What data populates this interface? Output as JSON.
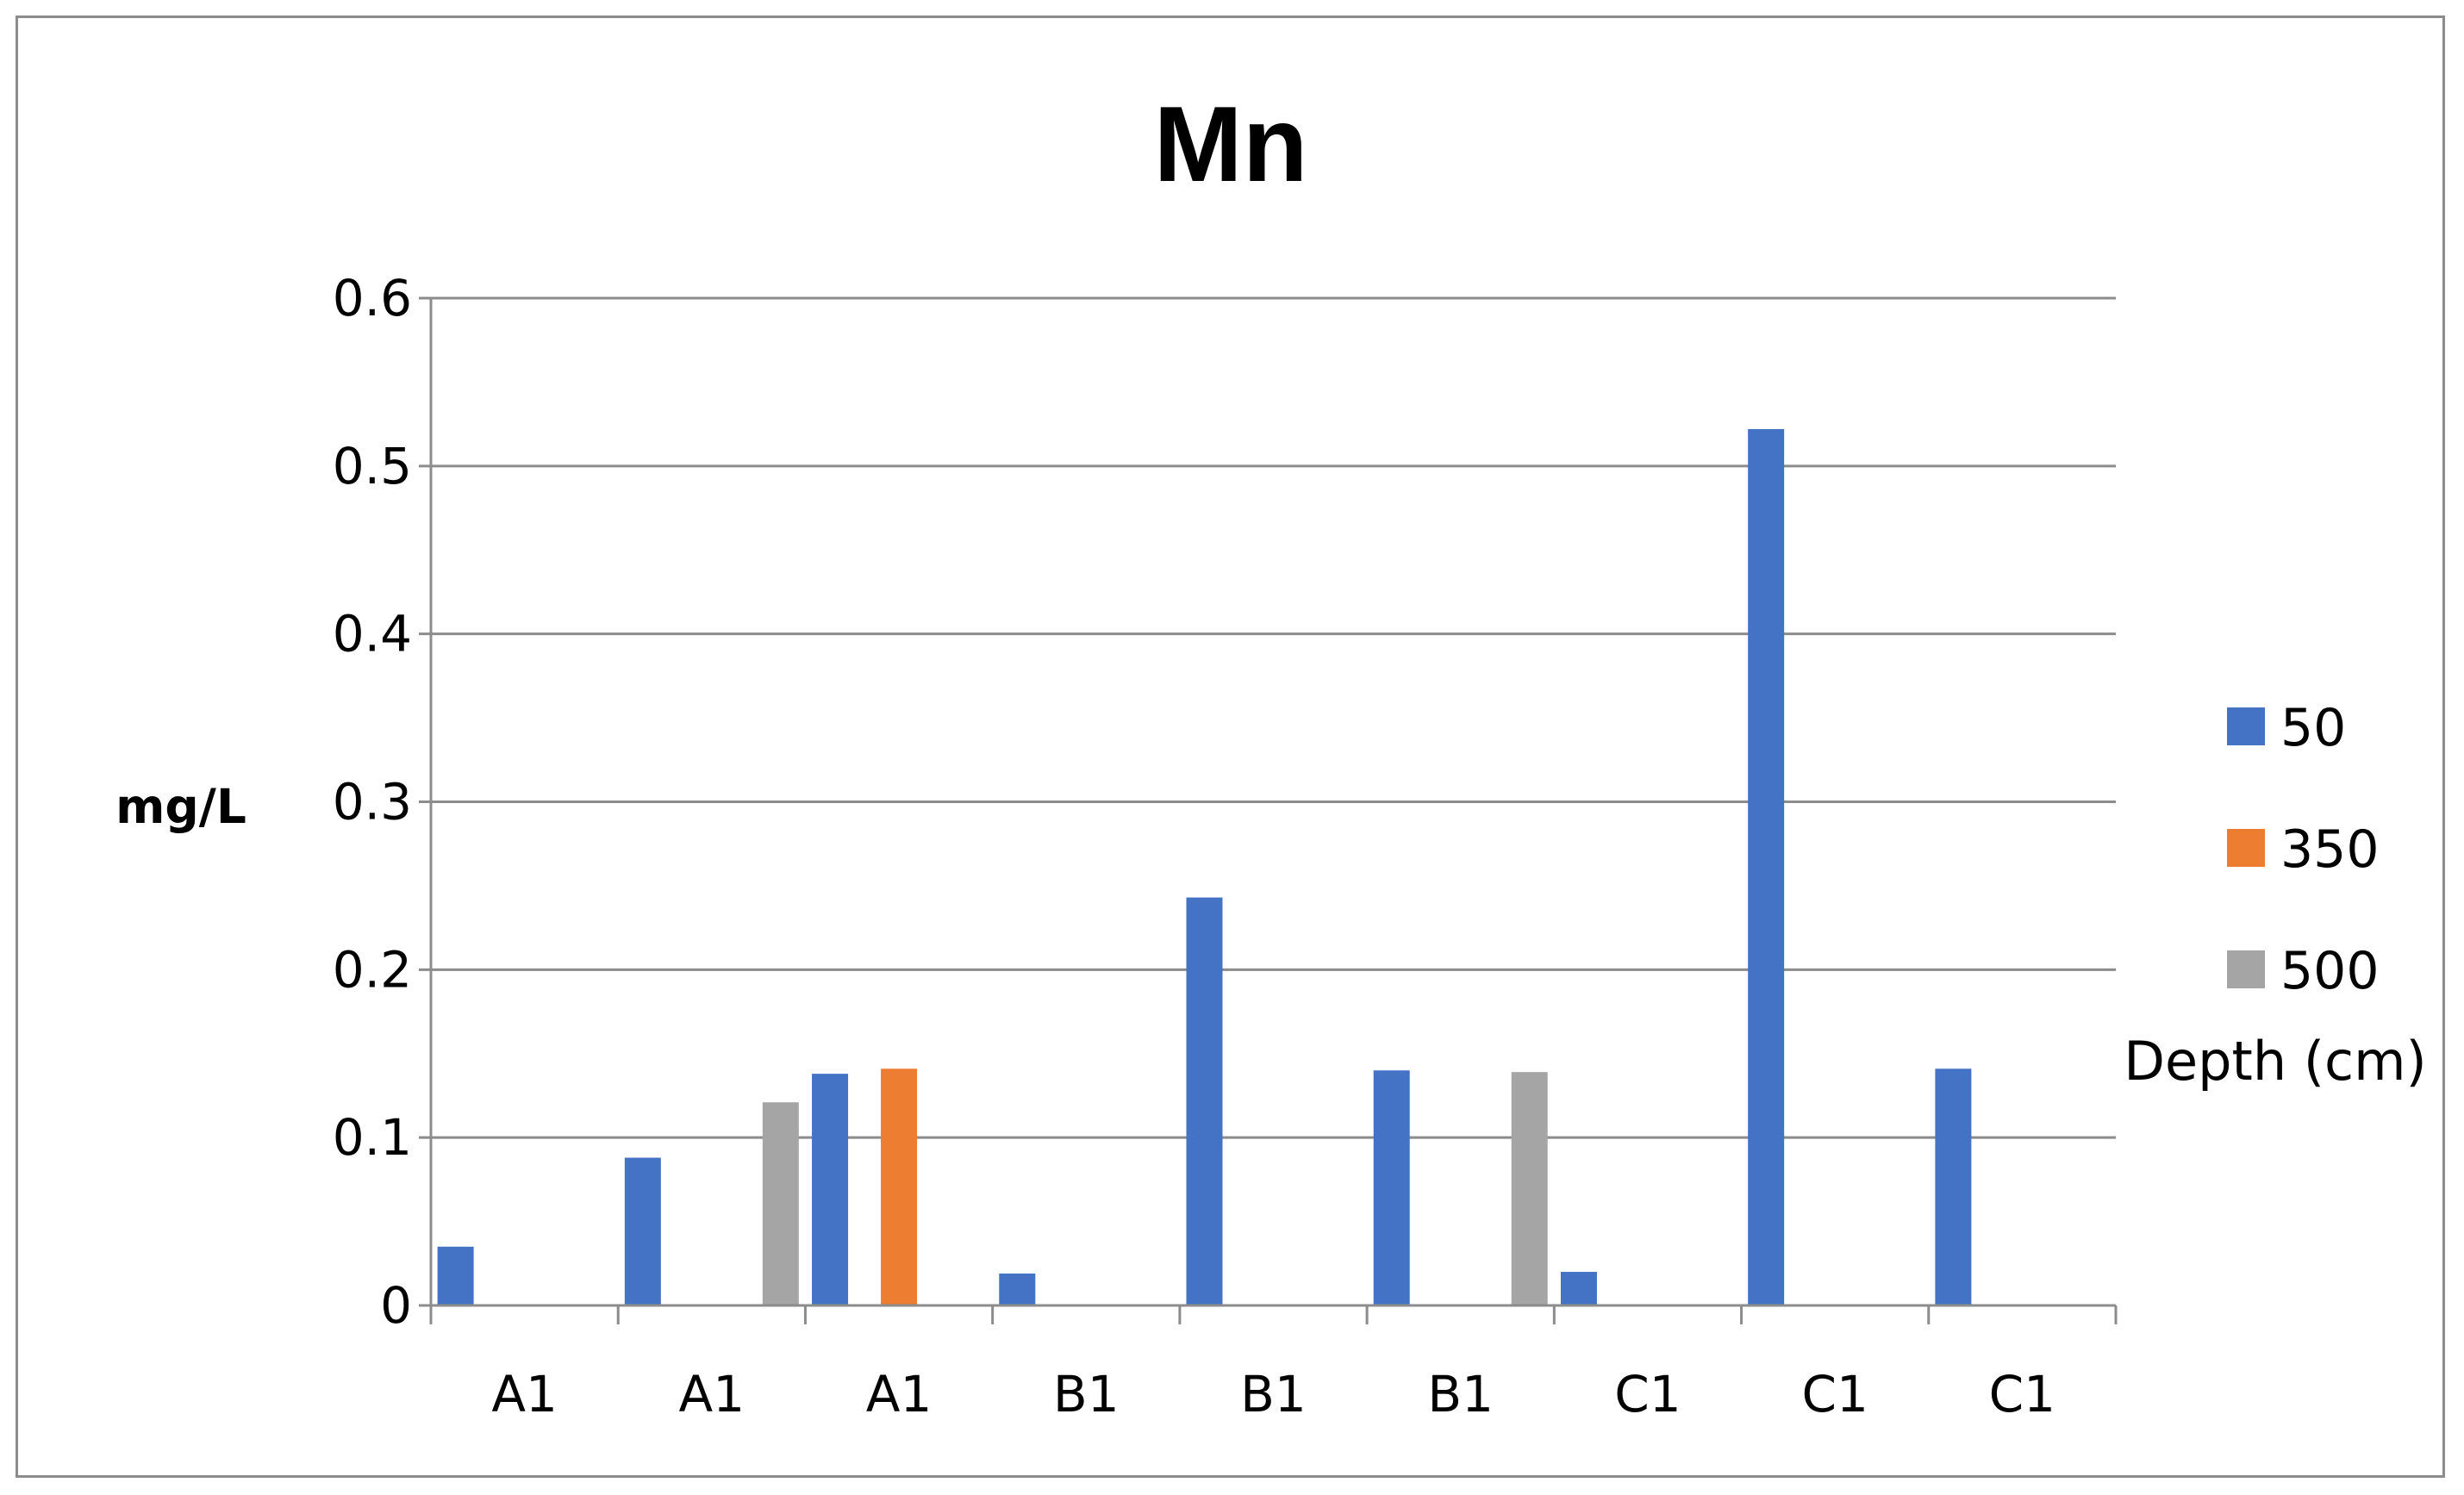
{
  "chart_data": {
    "type": "bar",
    "title": "Mn",
    "xlabel": "",
    "ylabel": "mg/L",
    "ylim": [
      0,
      0.6
    ],
    "yticks": [
      "0",
      "0.1",
      "0.2",
      "0.3",
      "0.4",
      "0.5",
      "0.6"
    ],
    "categories": [
      "A1",
      "A1",
      "A1",
      "B1",
      "B1",
      "B1",
      "C1",
      "C1",
      "C1"
    ],
    "series": [
      {
        "name": "50",
        "color": "#4472C4",
        "values": [
          0.035,
          0.088,
          0.138,
          0.019,
          0.243,
          0.14,
          0.02,
          0.522,
          0.141
        ]
      },
      {
        "name": "350",
        "color": "#ED7D31",
        "values": [
          null,
          null,
          0.141,
          null,
          null,
          null,
          null,
          null,
          null
        ]
      },
      {
        "name": "500",
        "color": "#A5A5A5",
        "values": [
          null,
          0.121,
          null,
          null,
          null,
          0.139,
          null,
          null,
          null
        ]
      }
    ],
    "legend_title": "Depth (cm)",
    "legend_position": "right",
    "grid": true
  }
}
